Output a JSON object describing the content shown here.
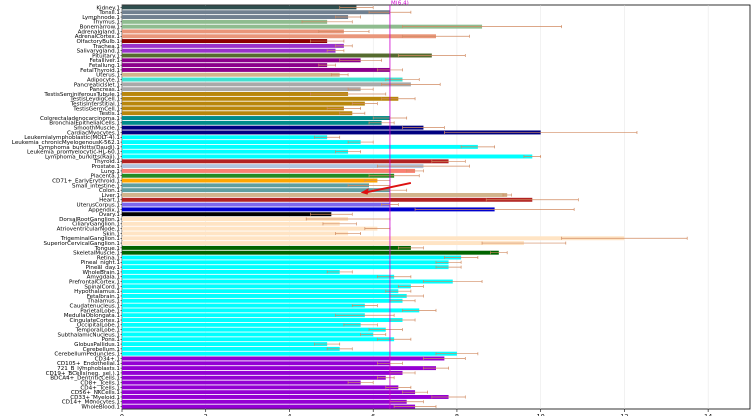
{
  "chart_data": {
    "type": "bar",
    "orientation": "horizontal",
    "title": "",
    "xlabel": "",
    "ylabel": "",
    "xlim": [
      0,
      15
    ],
    "xticks": [
      0,
      2,
      4,
      6,
      8,
      10,
      12,
      14
    ],
    "grid": false,
    "reference_line": {
      "value": 6.4,
      "label": "M(6.4)",
      "color": "#cc00cc"
    },
    "annotation": {
      "type": "arrow",
      "color": "#dd1111",
      "points_to": "Liver.1"
    },
    "bars": [
      {
        "label": "Kidney.1",
        "value": 5.6,
        "err": 0.4,
        "color": "#2f4f4f"
      },
      {
        "label": "Tonsil.1",
        "value": 6.4,
        "err": 0.5,
        "color": "#708090"
      },
      {
        "label": "Lymphnode.1",
        "value": 5.4,
        "err": 0.3,
        "color": "#708090"
      },
      {
        "label": "Thymus.1",
        "value": 4.9,
        "err": 0.6,
        "color": "#8fbc8f"
      },
      {
        "label": "Bonemarrow.1",
        "value": 8.6,
        "err": 1.9,
        "color": "#8fbc8f"
      },
      {
        "label": "Adrenalgland.1",
        "value": 5.3,
        "err": 0.6,
        "color": "#e9967a"
      },
      {
        "label": "AdrenalCortex.1",
        "value": 7.5,
        "err": 0.8,
        "color": "#e9967a"
      },
      {
        "label": "OlfactoryBulb.1",
        "value": 4.9,
        "err": 0.4,
        "color": "#8b0000"
      },
      {
        "label": "Trachea.1",
        "value": 5.3,
        "err": 0.2,
        "color": "#9932cc"
      },
      {
        "label": "Salivarygland.1",
        "value": 5.1,
        "err": 0.2,
        "color": "#9932cc"
      },
      {
        "label": "Pituitary.1",
        "value": 7.4,
        "err": 0.8,
        "color": "#556b2f"
      },
      {
        "label": "Fetalliver.1",
        "value": 5.7,
        "err": 0.5,
        "color": "#8b008b"
      },
      {
        "label": "Fetallung.1",
        "value": 4.9,
        "err": 0.2,
        "color": "#8b008b"
      },
      {
        "label": "FetalThyroid.1",
        "value": 6.4,
        "err": 0.3,
        "color": "#8b008b"
      },
      {
        "label": "Uterus.1",
        "value": 5.2,
        "err": 0.2,
        "color": "#d2b48c"
      },
      {
        "label": "Adipocyte.1",
        "value": 6.7,
        "err": 0.4,
        "color": "#40e0d0"
      },
      {
        "label": "PancreaticIslet.1",
        "value": 6.9,
        "err": 0.7,
        "color": "#a9a9a9"
      },
      {
        "label": "Pancreas.1",
        "value": 5.7,
        "err": 0.3,
        "color": "#a9a9a9"
      },
      {
        "label": "TestisSeminiferousTubule.1",
        "value": 5.4,
        "err": 0.9,
        "color": "#b8860b"
      },
      {
        "label": "TestisLeydigCell.1",
        "value": 6.6,
        "err": 0.4,
        "color": "#b8860b"
      },
      {
        "label": "TestisInterstitial.1",
        "value": 5.8,
        "err": 0.3,
        "color": "#b8860b"
      },
      {
        "label": "TestisGermCell.1",
        "value": 5.3,
        "err": 0.4,
        "color": "#b8860b"
      },
      {
        "label": "Testis.1",
        "value": 5.5,
        "err": 0.3,
        "color": "#b8860b"
      },
      {
        "label": "Colorectaladenocarcinoma.1",
        "value": 6.4,
        "err": 0.4,
        "color": "#008b8b"
      },
      {
        "label": "BronchialEpithelialCells.1",
        "value": 6.2,
        "err": 0.3,
        "color": "#008b8b"
      },
      {
        "label": "SmoothMuscle.1",
        "value": 7.2,
        "err": 0.5,
        "color": "#000080"
      },
      {
        "label": "CardiacMyocytes.1",
        "value": 10.0,
        "err": 2.3,
        "color": "#000080"
      },
      {
        "label": "Leukemialymphoblastic(MOLT-4).1",
        "value": 4.9,
        "err": 0.3,
        "color": "#00ffff"
      },
      {
        "label": "Leukemia_chronicMyelogenousK-562.1",
        "value": 5.7,
        "err": 0.3,
        "color": "#00ffff"
      },
      {
        "label": "Lymphoma_burkitts(Daudi).1",
        "value": 8.5,
        "err": 0.4,
        "color": "#00ffff"
      },
      {
        "label": "Leukemia_promyelocytic-HL-60.1",
        "value": 5.4,
        "err": 0.3,
        "color": "#00ffff"
      },
      {
        "label": "Lymphoma_burkitts(Raji).1",
        "value": 9.8,
        "err": 0.2,
        "color": "#00ffff"
      },
      {
        "label": "Thyroid.1",
        "value": 7.8,
        "err": 0.4,
        "color": "#b22222"
      },
      {
        "label": "Prostate.1",
        "value": 7.2,
        "err": 1.1,
        "color": "#b0c4de"
      },
      {
        "label": "Lung.1",
        "value": 7.0,
        "err": 0.2,
        "color": "#fa8072"
      },
      {
        "label": "Placenta.1",
        "value": 6.5,
        "err": 0.6,
        "color": "#228b22"
      },
      {
        "label": "CD71+_EarlyErythroid.1",
        "value": 6.1,
        "err": 0.3,
        "color": "#ffa500"
      },
      {
        "label": "Small_intestine.1",
        "value": 5.9,
        "err": 0.5,
        "color": "#5f9ea0"
      },
      {
        "label": "Colon.1",
        "value": 6.4,
        "err": 0.4,
        "color": "#5f9ea0"
      },
      {
        "label": "Liver.1",
        "value": 9.2,
        "err": 0.1,
        "color": "#d2b48c"
      },
      {
        "label": "Heart.1",
        "value": 9.8,
        "err": 1.1,
        "color": "#b22222"
      },
      {
        "label": "UterusCorpus.1",
        "value": 6.4,
        "err": 0.2,
        "color": "#7b68ee"
      },
      {
        "label": "Appendix.1",
        "value": 8.9,
        "err": 1.9,
        "color": "#0000cd"
      },
      {
        "label": "Ovary.1",
        "value": 5.0,
        "err": 0.5,
        "color": "#000000"
      },
      {
        "label": "DorsalRootGanglion.1",
        "value": 5.4,
        "err": 1.0,
        "color": "#ffe4c4"
      },
      {
        "label": "CiliaryGanglion.1",
        "value": 5.2,
        "err": 0.4,
        "color": "#ffe4c4"
      },
      {
        "label": "AtrioventricularNode.1",
        "value": 6.1,
        "err": 0.3,
        "color": "#ffe4c4"
      },
      {
        "label": "Skin.1",
        "value": 5.4,
        "err": 0.3,
        "color": "#ffe4c4"
      },
      {
        "label": "TrigeminalGanglion.1",
        "value": 12.0,
        "err": 1.5,
        "color": "#ffe4c4"
      },
      {
        "label": "SuperiorCervicalGanglion.1",
        "value": 9.6,
        "err": 1.0,
        "color": "#ffe4c4"
      },
      {
        "label": "Tongue.1",
        "value": 6.9,
        "err": 0.3,
        "color": "#006400"
      },
      {
        "label": "SkeletalMuscle.1",
        "value": 9.0,
        "err": 0.2,
        "color": "#006400"
      },
      {
        "label": "Retina.1",
        "value": 8.1,
        "err": 0.4,
        "color": "#00ffff"
      },
      {
        "label": "Pineal_night.1",
        "value": 7.8,
        "err": 0.3,
        "color": "#00ffff"
      },
      {
        "label": "Pineal_day.1",
        "value": 7.8,
        "err": 0.3,
        "color": "#00ffff"
      },
      {
        "label": "WholeBrain.1",
        "value": 5.2,
        "err": 0.3,
        "color": "#00ffff"
      },
      {
        "label": "Amygdala.1",
        "value": 6.5,
        "err": 0.4,
        "color": "#00ffff"
      },
      {
        "label": "PrefrontalCortex.1",
        "value": 7.9,
        "err": 0.7,
        "color": "#00ffff"
      },
      {
        "label": "SpinalCord.1",
        "value": 6.9,
        "err": 0.3,
        "color": "#00ffff"
      },
      {
        "label": "Hypothalamus.1",
        "value": 6.6,
        "err": 0.3,
        "color": "#00ffff"
      },
      {
        "label": "Fetalbrain.1",
        "value": 6.8,
        "err": 0.4,
        "color": "#00ffff"
      },
      {
        "label": "Thalamus.1",
        "value": 6.7,
        "err": 0.3,
        "color": "#00ffff"
      },
      {
        "label": "Caudatenucleus.1",
        "value": 5.8,
        "err": 0.3,
        "color": "#00ffff"
      },
      {
        "label": "ParietalLobe.1",
        "value": 7.1,
        "err": 0.4,
        "color": "#00ffff"
      },
      {
        "label": "MedullaOblongata.1",
        "value": 5.8,
        "err": 0.7,
        "color": "#00ffff"
      },
      {
        "label": "CingulateCortex.1",
        "value": 6.7,
        "err": 0.3,
        "color": "#00ffff"
      },
      {
        "label": "OccipitalLobe.1",
        "value": 5.7,
        "err": 0.4,
        "color": "#00ffff"
      },
      {
        "label": "TemporalLobe.1",
        "value": 6.3,
        "err": 0.4,
        "color": "#00ffff"
      },
      {
        "label": "SubthalamicNucleus.1",
        "value": 6.0,
        "err": 0.3,
        "color": "#00ffff"
      },
      {
        "label": "Pons.1",
        "value": 6.5,
        "err": 0.4,
        "color": "#00ffff"
      },
      {
        "label": "GlobusPallidus.1",
        "value": 4.9,
        "err": 0.3,
        "color": "#00ffff"
      },
      {
        "label": "Cerebellum.1",
        "value": 5.2,
        "err": 0.3,
        "color": "#00ffff"
      },
      {
        "label": "CerebellumPeduncles.1",
        "value": 8.0,
        "err": 0.5,
        "color": "#00ffff"
      },
      {
        "label": "CD34+.1",
        "value": 7.7,
        "err": 0.5,
        "color": "#9400d3"
      },
      {
        "label": "CD105+_Endothelial.1",
        "value": 6.4,
        "err": 0.3,
        "color": "#9400d3"
      },
      {
        "label": "721_B_lymphoblasts.1",
        "value": 7.5,
        "err": 0.3,
        "color": "#9400d3"
      },
      {
        "label": "CD19+_BCells(neg._sel.).1",
        "value": 6.7,
        "err": 0.3,
        "color": "#9400d3"
      },
      {
        "label": "BDCA4+_DentriticCells.1",
        "value": 6.3,
        "err": 0.2,
        "color": "#9400d3"
      },
      {
        "label": "CD8+_Tcells.1",
        "value": 5.7,
        "err": 0.3,
        "color": "#9400d3"
      },
      {
        "label": "CD4+_Tcells.1",
        "value": 6.6,
        "err": 0.3,
        "color": "#9400d3"
      },
      {
        "label": "CD56+_NKCells.1",
        "value": 7.0,
        "err": 0.3,
        "color": "#9400d3"
      },
      {
        "label": "CD33+_Myeloid.1",
        "value": 7.8,
        "err": 0.4,
        "color": "#9400d3"
      },
      {
        "label": "CD14+_Monocytes.1",
        "value": 6.8,
        "err": 0.4,
        "color": "#9400d3"
      },
      {
        "label": "WholeBlood.1",
        "value": 7.0,
        "err": 0.5,
        "color": "#9400d3"
      }
    ]
  }
}
